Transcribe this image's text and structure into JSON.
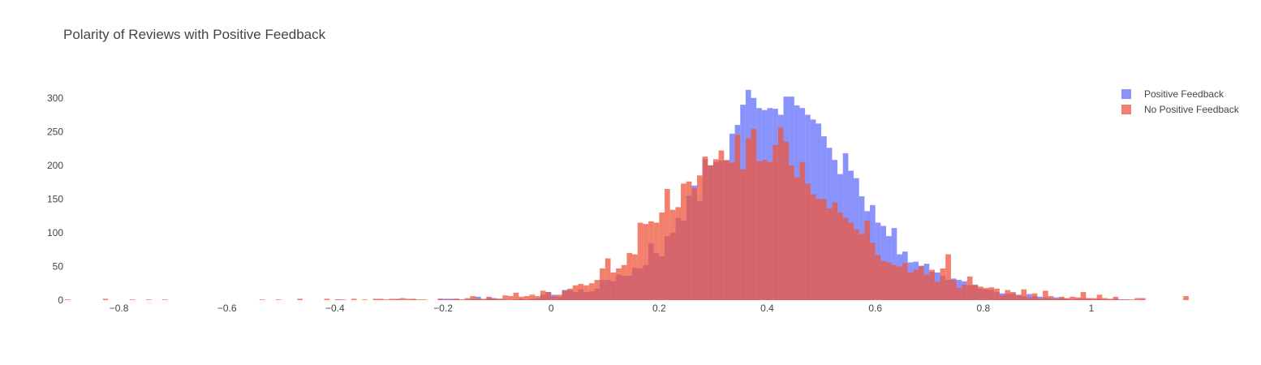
{
  "chart_data": {
    "type": "histogram",
    "title": "Polarity of Reviews with Positive Feedback",
    "xlabel": "",
    "ylabel": "",
    "xlim": [
      -0.9,
      1.0
    ],
    "ylim": [
      0,
      325
    ],
    "bin_start": -0.9,
    "bin_width": 0.01,
    "barmode": "overlay",
    "grid": false,
    "legend_position": "top-right",
    "xticks": [
      {
        "value": -0.8,
        "label": "−0.8"
      },
      {
        "value": -0.6,
        "label": "−0.6"
      },
      {
        "value": -0.4,
        "label": "−0.4"
      },
      {
        "value": -0.2,
        "label": "−0.2"
      },
      {
        "value": 0,
        "label": "0"
      },
      {
        "value": 0.2,
        "label": "0.2"
      },
      {
        "value": 0.4,
        "label": "0.4"
      },
      {
        "value": 0.6,
        "label": "0.6"
      },
      {
        "value": 0.8,
        "label": "0.8"
      },
      {
        "value": 1,
        "label": "1"
      }
    ],
    "yticks": [
      {
        "value": 0,
        "label": "0"
      },
      {
        "value": 50,
        "label": "50"
      },
      {
        "value": 100,
        "label": "100"
      },
      {
        "value": 150,
        "label": "150"
      },
      {
        "value": 200,
        "label": "200"
      },
      {
        "value": 250,
        "label": "250"
      },
      {
        "value": 300,
        "label": "300"
      }
    ],
    "series": [
      {
        "name": "Positive Feedback",
        "color": "#636efa",
        "opacity": 0.75,
        "values": [
          0,
          0,
          0,
          0,
          0,
          0,
          0,
          0,
          0,
          0,
          0,
          0,
          0,
          0,
          0,
          0,
          0,
          0,
          0,
          0,
          0,
          0,
          0,
          0,
          0,
          0,
          0,
          0,
          0,
          0,
          0,
          0,
          0,
          0,
          0,
          0,
          0,
          0,
          0,
          0,
          0,
          0,
          0,
          0,
          0,
          0,
          0,
          0,
          0,
          0,
          1,
          0,
          0,
          0,
          0,
          0,
          0,
          0,
          0,
          0,
          0,
          1,
          0,
          0,
          1,
          0,
          0,
          0,
          0,
          2,
          2,
          2,
          2,
          1,
          1,
          2,
          5,
          1,
          3,
          3,
          2,
          1,
          0,
          1,
          2,
          1,
          2,
          3,
          8,
          12,
          8,
          5,
          15,
          15,
          12,
          16,
          12,
          13,
          17,
          30,
          30,
          28,
          38,
          36,
          36,
          48,
          47,
          52,
          84,
          70,
          65,
          95,
          100,
          122,
          118,
          155,
          170,
          147,
          209,
          200,
          205,
          207,
          207,
          247,
          260,
          290,
          312,
          300,
          285,
          282,
          285,
          284,
          275,
          302,
          302,
          289,
          285,
          275,
          268,
          262,
          243,
          226,
          208,
          187,
          218,
          192,
          181,
          154,
          132,
          141,
          115,
          110,
          95,
          107,
          68,
          72,
          56,
          57,
          51,
          54,
          42,
          41,
          36,
          30,
          32,
          30,
          28,
          22,
          23,
          17,
          16,
          15,
          12,
          10,
          9,
          10,
          8,
          6,
          9,
          6,
          5,
          4,
          3,
          4,
          3,
          2,
          1,
          2,
          3,
          2,
          1,
          2,
          1,
          1,
          2,
          1,
          1,
          0,
          0,
          1,
          0,
          0,
          0,
          0,
          0,
          0,
          0
        ]
      },
      {
        "name": "No Positive Feedback",
        "color": "#ef553b",
        "opacity": 0.75,
        "values": [
          1,
          0,
          0,
          0,
          0,
          0,
          0,
          2,
          0,
          0,
          0,
          0,
          1,
          0,
          0,
          1,
          0,
          0,
          1,
          0,
          0,
          0,
          0,
          0,
          0,
          0,
          0,
          0,
          0,
          0,
          0,
          0,
          0,
          0,
          0,
          0,
          1,
          0,
          0,
          1,
          0,
          0,
          0,
          2,
          0,
          0,
          0,
          0,
          2,
          0,
          1,
          1,
          0,
          2,
          0,
          1,
          0,
          2,
          2,
          1,
          2,
          2,
          3,
          2,
          2,
          1,
          1,
          0,
          0,
          2,
          1,
          1,
          2,
          1,
          3,
          6,
          2,
          2,
          5,
          2,
          2,
          7,
          6,
          11,
          5,
          6,
          8,
          6,
          14,
          12,
          6,
          8,
          14,
          17,
          22,
          24,
          22,
          25,
          30,
          47,
          62,
          41,
          47,
          52,
          70,
          68,
          115,
          113,
          117,
          115,
          130,
          165,
          134,
          138,
          173,
          176,
          166,
          185,
          213,
          200,
          209,
          222,
          208,
          204,
          245,
          194,
          240,
          254,
          206,
          208,
          205,
          230,
          256,
          235,
          200,
          182,
          205,
          173,
          157,
          150,
          150,
          136,
          145,
          130,
          122,
          115,
          105,
          98,
          118,
          85,
          67,
          58,
          56,
          52,
          50,
          55,
          41,
          45,
          50,
          38,
          45,
          27,
          47,
          68,
          30,
          18,
          23,
          35,
          22,
          20,
          18,
          19,
          17,
          7,
          15,
          12,
          7,
          16,
          4,
          10,
          2,
          14,
          6,
          2,
          5,
          3,
          5,
          4,
          12,
          3,
          3,
          8,
          3,
          2,
          5,
          1,
          1,
          1,
          3,
          3,
          0,
          0,
          0,
          0,
          0,
          0,
          0,
          6
        ]
      }
    ]
  }
}
